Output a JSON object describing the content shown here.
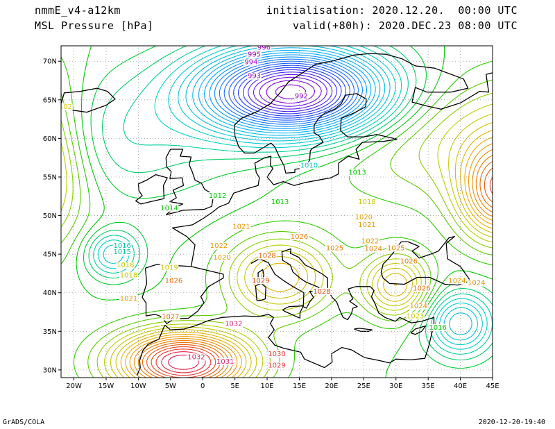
{
  "header": {
    "model": "nmmE_v4-a12km",
    "field": "MSL Pressure [hPa]",
    "init_label": "initialisation:",
    "init_value": "2020.12.20.  00:00 UTC",
    "valid_label": "valid(+80h):",
    "valid_value": "2020.DEC.23 08:00 UTC"
  },
  "footer": {
    "left": "GrADS/COLA",
    "right": "2020-12-20-19:40"
  },
  "map": {
    "lon_range": [
      -22,
      45
    ],
    "lat_range": [
      29,
      72
    ],
    "lon_ticks": [
      {
        "v": -20,
        "label": "20W"
      },
      {
        "v": -15,
        "label": "15W"
      },
      {
        "v": -10,
        "label": "10W"
      },
      {
        "v": -5,
        "label": "5W"
      },
      {
        "v": 0,
        "label": "0"
      },
      {
        "v": 5,
        "label": "5E"
      },
      {
        "v": 10,
        "label": "10E"
      },
      {
        "v": 15,
        "label": "15E"
      },
      {
        "v": 20,
        "label": "20E"
      },
      {
        "v": 25,
        "label": "25E"
      },
      {
        "v": 30,
        "label": "30E"
      },
      {
        "v": 35,
        "label": "35E"
      },
      {
        "v": 40,
        "label": "40E"
      },
      {
        "v": 45,
        "label": "45E"
      }
    ],
    "lat_ticks": [
      {
        "v": 30,
        "label": "30N"
      },
      {
        "v": 35,
        "label": "35N"
      },
      {
        "v": 40,
        "label": "40N"
      },
      {
        "v": 45,
        "label": "45N"
      },
      {
        "v": 50,
        "label": "50N"
      },
      {
        "v": 55,
        "label": "55N"
      },
      {
        "v": 60,
        "label": "60N"
      },
      {
        "v": 65,
        "label": "65N"
      },
      {
        "v": 70,
        "label": "70N"
      }
    ],
    "isobar_labels": [
      {
        "text": "996",
        "lon": 9.5,
        "lat": 71.5,
        "color": "#a000c8"
      },
      {
        "text": "995",
        "lon": 8.0,
        "lat": 70.6,
        "color": "#a000c8"
      },
      {
        "text": "994",
        "lon": 7.5,
        "lat": 69.6,
        "color": "#a000c8"
      },
      {
        "text": "993",
        "lon": 8.0,
        "lat": 67.8,
        "color": "#8a00c8"
      },
      {
        "text": "992",
        "lon": 15.3,
        "lat": 65.2,
        "color": "#8a00c8"
      },
      {
        "text": "1010",
        "lon": 16.5,
        "lat": 56.2,
        "color": "#00c8c8"
      },
      {
        "text": "1013",
        "lon": 24.0,
        "lat": 55.3,
        "color": "#00c800"
      },
      {
        "text": "1012",
        "lon": 2.3,
        "lat": 52.3,
        "color": "#00c800"
      },
      {
        "text": "1013",
        "lon": 12.0,
        "lat": 51.5,
        "color": "#00c800"
      },
      {
        "text": "1014",
        "lon": -5.2,
        "lat": 50.7,
        "color": "#00c800"
      },
      {
        "text": "1018",
        "lon": 25.5,
        "lat": 51.5,
        "color": "#c8c800"
      },
      {
        "text": "1020",
        "lon": 25.0,
        "lat": 49.5,
        "color": "#e69600"
      },
      {
        "text": "1021",
        "lon": 25.5,
        "lat": 48.5,
        "color": "#e69600"
      },
      {
        "text": "1022",
        "lon": 26.0,
        "lat": 46.4,
        "color": "#e69600"
      },
      {
        "text": "1024",
        "lon": 26.5,
        "lat": 45.4,
        "color": "#e68200"
      },
      {
        "text": "1025",
        "lon": 30.0,
        "lat": 45.5,
        "color": "#e68200"
      },
      {
        "text": "1025",
        "lon": 20.5,
        "lat": 45.5,
        "color": "#e68200"
      },
      {
        "text": "1026",
        "lon": 32.0,
        "lat": 43.8,
        "color": "#e68200"
      },
      {
        "text": "1026",
        "lon": 15.0,
        "lat": 47.0,
        "color": "#e68200"
      },
      {
        "text": "1026",
        "lon": 34.0,
        "lat": 40.3,
        "color": "#e66e00"
      },
      {
        "text": "1026",
        "lon": -4.5,
        "lat": 41.3,
        "color": "#e66e00"
      },
      {
        "text": "1028",
        "lon": 10.0,
        "lat": 44.5,
        "color": "#e65a00"
      },
      {
        "text": "1029",
        "lon": 9.0,
        "lat": 41.3,
        "color": "#e64600"
      },
      {
        "text": "1028",
        "lon": 18.5,
        "lat": 39.9,
        "color": "#e64600"
      },
      {
        "text": "1024",
        "lon": 33.5,
        "lat": 38.0,
        "color": "#e69600"
      },
      {
        "text": "1023",
        "lon": 33.0,
        "lat": 36.7,
        "color": "#c8c800"
      },
      {
        "text": "1016",
        "lon": 36.5,
        "lat": 35.2,
        "color": "#00c800"
      },
      {
        "text": "1024",
        "lon": 39.5,
        "lat": 41.3,
        "color": "#e69600"
      },
      {
        "text": "1022",
        "lon": 2.5,
        "lat": 45.8,
        "color": "#e69600"
      },
      {
        "text": "1021",
        "lon": 6.0,
        "lat": 48.3,
        "color": "#e69600"
      },
      {
        "text": "1020",
        "lon": 3.0,
        "lat": 44.3,
        "color": "#e69600"
      },
      {
        "text": "1019",
        "lon": -5.2,
        "lat": 43.0,
        "color": "#c8c800"
      },
      {
        "text": "1018",
        "lon": -11.5,
        "lat": 42.0,
        "color": "#c8c800"
      },
      {
        "text": "1021",
        "lon": -11.5,
        "lat": 39.0,
        "color": "#e69600"
      },
      {
        "text": "1027",
        "lon": -5.0,
        "lat": 36.6,
        "color": "#e66e00"
      },
      {
        "text": "1032",
        "lon": 4.8,
        "lat": 35.7,
        "color": "#dc2864"
      },
      {
        "text": "1032",
        "lon": -1.0,
        "lat": 31.4,
        "color": "#dc2864"
      },
      {
        "text": "1031",
        "lon": 3.5,
        "lat": 30.8,
        "color": "#dc2864"
      },
      {
        "text": "1030",
        "lon": 11.5,
        "lat": 31.8,
        "color": "#e63c3c"
      },
      {
        "text": "1029",
        "lon": 11.5,
        "lat": 30.3,
        "color": "#e63c3c"
      },
      {
        "text": "1016",
        "lon": -12.5,
        "lat": 45.8,
        "color": "#00c8a0"
      },
      {
        "text": "1015",
        "lon": -12.5,
        "lat": 45.0,
        "color": "#00c8a0"
      },
      {
        "text": "1018",
        "lon": -12.0,
        "lat": 43.3,
        "color": "#c8c800"
      },
      {
        "text": "102",
        "lon": -21.3,
        "lat": 63.8,
        "color": "#e6c800"
      },
      {
        "text": "1024",
        "lon": 42.5,
        "lat": 41.0,
        "color": "#e69600"
      }
    ]
  },
  "colors": {
    "low": "#8200dc",
    "mid": "#00c8c8",
    "neutral": "#00c800",
    "high": "#e68200",
    "very_high": "#e6006e",
    "coast": "#000000"
  }
}
